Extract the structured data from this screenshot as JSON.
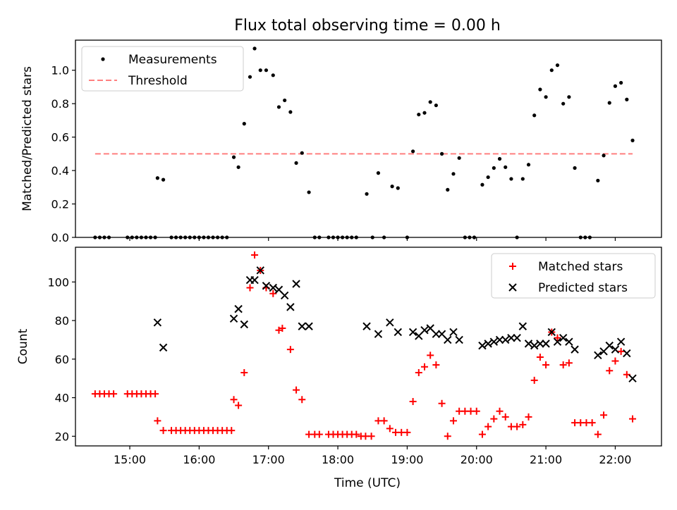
{
  "figure": {
    "title": "Flux total observing time = 0.00 h"
  },
  "chart_data": [
    {
      "type": "scatter",
      "panel": "top",
      "title": "Flux total observing time = 0.00 h",
      "xlabel": "",
      "ylabel": "Matched/Predicted stars",
      "xlim": [
        "14:13",
        "22:40"
      ],
      "ylim": [
        0,
        1.18
      ],
      "yticks": [
        0.0,
        0.2,
        0.4,
        0.6,
        0.8,
        1.0
      ],
      "ytick_labels": [
        "0.0",
        "0.2",
        "0.4",
        "0.6",
        "0.8",
        "1.0"
      ],
      "xticks": [
        "15:00",
        "16:00",
        "17:00",
        "18:00",
        "19:00",
        "20:00",
        "21:00",
        "22:00"
      ],
      "grid": false,
      "legend": {
        "placement": "upper-left",
        "entries": [
          "Measurements",
          "Threshold"
        ]
      },
      "threshold": {
        "name": "Threshold",
        "y": 0.5,
        "x_range": [
          "14:30",
          "22:15"
        ],
        "color": "#ff7f7f",
        "style": "dashed"
      },
      "series": [
        {
          "name": "Measurements",
          "marker": "dot",
          "color": "#000000",
          "points": [
            [
              "14:30",
              0
            ],
            [
              "14:34",
              0
            ],
            [
              "14:38",
              0
            ],
            [
              "14:42",
              0
            ],
            [
              "14:58",
              0
            ],
            [
              "15:02",
              0
            ],
            [
              "15:06",
              0
            ],
            [
              "15:10",
              0
            ],
            [
              "15:14",
              0
            ],
            [
              "15:18",
              0
            ],
            [
              "15:22",
              0
            ],
            [
              "15:24",
              0.355
            ],
            [
              "15:29",
              0.345
            ],
            [
              "15:36",
              0
            ],
            [
              "15:40",
              0
            ],
            [
              "15:44",
              0
            ],
            [
              "15:48",
              0
            ],
            [
              "15:52",
              0
            ],
            [
              "15:56",
              0
            ],
            [
              "16:00",
              0
            ],
            [
              "16:04",
              0
            ],
            [
              "16:08",
              0
            ],
            [
              "16:12",
              0
            ],
            [
              "16:16",
              0
            ],
            [
              "16:20",
              0
            ],
            [
              "16:24",
              0
            ],
            [
              "16:30",
              0.48
            ],
            [
              "16:34",
              0.42
            ],
            [
              "16:39",
              0.68
            ],
            [
              "16:44",
              0.96
            ],
            [
              "16:48",
              1.13
            ],
            [
              "16:53",
              1.0
            ],
            [
              "16:58",
              1.0
            ],
            [
              "17:04",
              0.97
            ],
            [
              "17:09",
              0.78
            ],
            [
              "17:14",
              0.82
            ],
            [
              "17:19",
              0.75
            ],
            [
              "17:24",
              0.445
            ],
            [
              "17:29",
              0.505
            ],
            [
              "17:35",
              0.27
            ],
            [
              "17:40",
              0
            ],
            [
              "17:44",
              0
            ],
            [
              "17:52",
              0
            ],
            [
              "17:56",
              0
            ],
            [
              "18:00",
              0
            ],
            [
              "18:04",
              0
            ],
            [
              "18:08",
              0
            ],
            [
              "18:12",
              0
            ],
            [
              "18:16",
              0
            ],
            [
              "18:25",
              0.26
            ],
            [
              "18:30",
              0
            ],
            [
              "18:35",
              0.385
            ],
            [
              "18:40",
              0
            ],
            [
              "18:47",
              0.305
            ],
            [
              "18:52",
              0.295
            ],
            [
              "19:00",
              0
            ],
            [
              "19:05",
              0.515
            ],
            [
              "19:10",
              0.735
            ],
            [
              "19:15",
              0.745
            ],
            [
              "19:20",
              0.81
            ],
            [
              "19:25",
              0.79
            ],
            [
              "19:30",
              0.5
            ],
            [
              "19:35",
              0.285
            ],
            [
              "19:40",
              0.38
            ],
            [
              "19:45",
              0.475
            ],
            [
              "19:50",
              0
            ],
            [
              "19:54",
              0
            ],
            [
              "19:58",
              0
            ],
            [
              "20:05",
              0.315
            ],
            [
              "20:10",
              0.36
            ],
            [
              "20:15",
              0.415
            ],
            [
              "20:20",
              0.47
            ],
            [
              "20:25",
              0.42
            ],
            [
              "20:30",
              0.35
            ],
            [
              "20:35",
              0
            ],
            [
              "20:40",
              0.35
            ],
            [
              "20:45",
              0.435
            ],
            [
              "20:50",
              0.73
            ],
            [
              "20:55",
              0.885
            ],
            [
              "21:00",
              0.84
            ],
            [
              "21:05",
              1.0
            ],
            [
              "21:10",
              1.03
            ],
            [
              "21:15",
              0.8
            ],
            [
              "21:20",
              0.84
            ],
            [
              "21:25",
              0.415
            ],
            [
              "21:30",
              0
            ],
            [
              "21:34",
              0
            ],
            [
              "21:38",
              0
            ],
            [
              "21:45",
              0.34
            ],
            [
              "21:50",
              0.49
            ],
            [
              "21:55",
              0.805
            ],
            [
              "22:00",
              0.905
            ],
            [
              "22:05",
              0.925
            ],
            [
              "22:10",
              0.825
            ],
            [
              "22:15",
              0.58
            ]
          ]
        }
      ]
    },
    {
      "type": "scatter",
      "panel": "bottom",
      "title": "",
      "xlabel": "Time (UTC)",
      "ylabel": "Count",
      "xlim": [
        "14:13",
        "22:40"
      ],
      "ylim": [
        15,
        118
      ],
      "yticks": [
        20,
        40,
        60,
        80,
        100
      ],
      "ytick_labels": [
        "20",
        "40",
        "60",
        "80",
        "100"
      ],
      "xticks": [
        "15:00",
        "16:00",
        "17:00",
        "18:00",
        "19:00",
        "20:00",
        "21:00",
        "22:00"
      ],
      "grid": false,
      "legend": {
        "placement": "upper-right",
        "entries": [
          "Matched stars",
          "Predicted stars"
        ]
      },
      "series": [
        {
          "name": "Matched stars",
          "marker": "plus",
          "color": "#ff0000",
          "points": [
            [
              "14:30",
              42
            ],
            [
              "14:34",
              42
            ],
            [
              "14:38",
              42
            ],
            [
              "14:42",
              42
            ],
            [
              "14:46",
              42
            ],
            [
              "14:58",
              42
            ],
            [
              "15:02",
              42
            ],
            [
              "15:06",
              42
            ],
            [
              "15:10",
              42
            ],
            [
              "15:14",
              42
            ],
            [
              "15:18",
              42
            ],
            [
              "15:22",
              42
            ],
            [
              "15:24",
              28
            ],
            [
              "15:29",
              23
            ],
            [
              "15:36",
              23
            ],
            [
              "15:40",
              23
            ],
            [
              "15:44",
              23
            ],
            [
              "15:48",
              23
            ],
            [
              "15:52",
              23
            ],
            [
              "15:56",
              23
            ],
            [
              "16:00",
              23
            ],
            [
              "16:04",
              23
            ],
            [
              "16:08",
              23
            ],
            [
              "16:12",
              23
            ],
            [
              "16:16",
              23
            ],
            [
              "16:20",
              23
            ],
            [
              "16:24",
              23
            ],
            [
              "16:28",
              23
            ],
            [
              "16:30",
              39
            ],
            [
              "16:34",
              36
            ],
            [
              "16:39",
              53
            ],
            [
              "16:44",
              97
            ],
            [
              "16:48",
              114
            ],
            [
              "16:53",
              106
            ],
            [
              "16:58",
              97
            ],
            [
              "17:04",
              94
            ],
            [
              "17:09",
              75
            ],
            [
              "17:12",
              76
            ],
            [
              "17:19",
              65
            ],
            [
              "17:24",
              44
            ],
            [
              "17:29",
              39
            ],
            [
              "17:35",
              21
            ],
            [
              "17:40",
              21
            ],
            [
              "17:44",
              21
            ],
            [
              "17:52",
              21
            ],
            [
              "17:56",
              21
            ],
            [
              "18:00",
              21
            ],
            [
              "18:04",
              21
            ],
            [
              "18:08",
              21
            ],
            [
              "18:12",
              21
            ],
            [
              "18:16",
              21
            ],
            [
              "18:20",
              20
            ],
            [
              "18:24",
              20
            ],
            [
              "18:29",
              20
            ],
            [
              "18:35",
              28
            ],
            [
              "18:40",
              28
            ],
            [
              "18:45",
              24
            ],
            [
              "18:50",
              22
            ],
            [
              "18:55",
              22
            ],
            [
              "19:00",
              22
            ],
            [
              "19:05",
              38
            ],
            [
              "19:10",
              53
            ],
            [
              "19:15",
              56
            ],
            [
              "19:20",
              62
            ],
            [
              "19:25",
              57
            ],
            [
              "19:30",
              37
            ],
            [
              "19:35",
              20
            ],
            [
              "19:40",
              28
            ],
            [
              "19:45",
              33
            ],
            [
              "19:50",
              33
            ],
            [
              "19:55",
              33
            ],
            [
              "20:00",
              33
            ],
            [
              "20:05",
              21
            ],
            [
              "20:10",
              25
            ],
            [
              "20:15",
              29
            ],
            [
              "20:20",
              33
            ],
            [
              "20:25",
              30
            ],
            [
              "20:30",
              25
            ],
            [
              "20:35",
              25
            ],
            [
              "20:40",
              26
            ],
            [
              "20:45",
              30
            ],
            [
              "20:50",
              49
            ],
            [
              "20:55",
              61
            ],
            [
              "21:00",
              57
            ],
            [
              "21:05",
              74
            ],
            [
              "21:10",
              71
            ],
            [
              "21:15",
              57
            ],
            [
              "21:20",
              58
            ],
            [
              "21:25",
              27
            ],
            [
              "21:30",
              27
            ],
            [
              "21:35",
              27
            ],
            [
              "21:40",
              27
            ],
            [
              "21:45",
              21
            ],
            [
              "21:50",
              31
            ],
            [
              "21:55",
              54
            ],
            [
              "22:00",
              59
            ],
            [
              "22:05",
              64
            ],
            [
              "22:10",
              52
            ],
            [
              "22:15",
              29
            ]
          ]
        },
        {
          "name": "Predicted stars",
          "marker": "x",
          "color": "#000000",
          "points": [
            [
              "15:24",
              79
            ],
            [
              "15:29",
              66
            ],
            [
              "16:30",
              81
            ],
            [
              "16:34",
              86
            ],
            [
              "16:39",
              78
            ],
            [
              "16:44",
              101
            ],
            [
              "16:48",
              101
            ],
            [
              "16:53",
              106
            ],
            [
              "16:58",
              98
            ],
            [
              "17:04",
              97
            ],
            [
              "17:09",
              96
            ],
            [
              "17:14",
              93
            ],
            [
              "17:19",
              87
            ],
            [
              "17:24",
              99
            ],
            [
              "17:29",
              77
            ],
            [
              "17:35",
              77
            ],
            [
              "18:25",
              77
            ],
            [
              "18:35",
              73
            ],
            [
              "18:45",
              79
            ],
            [
              "18:52",
              74
            ],
            [
              "19:05",
              74
            ],
            [
              "19:10",
              72
            ],
            [
              "19:15",
              75
            ],
            [
              "19:20",
              76
            ],
            [
              "19:25",
              73
            ],
            [
              "19:30",
              73
            ],
            [
              "19:35",
              70
            ],
            [
              "19:40",
              74
            ],
            [
              "19:45",
              70
            ],
            [
              "20:05",
              67
            ],
            [
              "20:10",
              68
            ],
            [
              "20:15",
              69
            ],
            [
              "20:20",
              70
            ],
            [
              "20:25",
              70
            ],
            [
              "20:30",
              71
            ],
            [
              "20:35",
              71
            ],
            [
              "20:40",
              77
            ],
            [
              "20:45",
              68
            ],
            [
              "20:50",
              67
            ],
            [
              "20:55",
              68
            ],
            [
              "21:00",
              68
            ],
            [
              "21:05",
              74
            ],
            [
              "21:10",
              69
            ],
            [
              "21:15",
              71
            ],
            [
              "21:20",
              69
            ],
            [
              "21:25",
              65
            ],
            [
              "21:45",
              62
            ],
            [
              "21:50",
              64
            ],
            [
              "21:55",
              67
            ],
            [
              "22:00",
              65
            ],
            [
              "22:05",
              69
            ],
            [
              "22:10",
              63
            ],
            [
              "22:15",
              50
            ]
          ]
        }
      ]
    }
  ]
}
